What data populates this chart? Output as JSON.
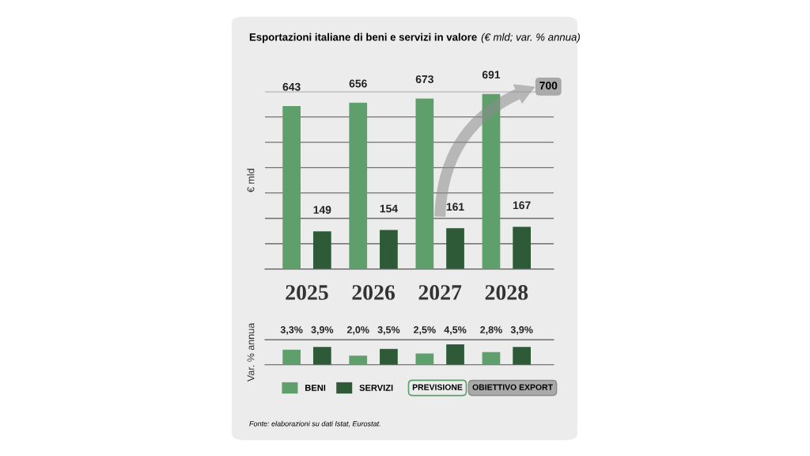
{
  "chart_data": [
    {
      "type": "bar",
      "title": "Esportazioni italiane di beni e servizi in valore",
      "subtitle": "(€ mld; var. % annua)",
      "ylabel": "€ mld",
      "categories": [
        "2025",
        "2026",
        "2027",
        "2028"
      ],
      "series": [
        {
          "name": "BENI",
          "color": "#5e9f6c",
          "values": [
            643,
            656,
            673,
            691
          ]
        },
        {
          "name": "SERVIZI",
          "color": "#2e5a38",
          "values": [
            149,
            154,
            161,
            167
          ]
        }
      ],
      "data_labels": true,
      "ylim": [
        0,
        700
      ],
      "legend": "bottom",
      "yticks": [
        {
          "value": 100,
          "label": null
        },
        {
          "value": 200,
          "label": null
        },
        {
          "value": 300,
          "label": null
        },
        {
          "value": 400,
          "label": null
        },
        {
          "value": 500,
          "label": null
        },
        {
          "value": 600,
          "label": null
        },
        {
          "value": 700,
          "label": null
        }
      ],
      "grid": "y",
      "tick_labels": "x",
      "annotations": [
        "700"
      ]
    },
    {
      "type": "bar",
      "ylabel": "Var. % annua",
      "categories": [
        "2025",
        "2026",
        "2027",
        "2028"
      ],
      "series": [
        {
          "color": "#5e9f6c",
          "values": [
            3.3,
            2.0,
            2.5,
            2.8
          ],
          "value_labels": [
            "3,3%",
            "2,0%",
            "2,5%",
            "2,8%"
          ]
        },
        {
          "color": "#2e5a38",
          "values": [
            3.9,
            3.5,
            4.5,
            3.9
          ],
          "value_labels": [
            "3,9%",
            "3,5%",
            "4,5%",
            "3,9%"
          ]
        }
      ],
      "ylim": [
        0,
        5.5
      ],
      "tick_labels": false,
      "annotations": [
        "PREVISIONE",
        "OBIETTIVO EXPORT",
        "Fonte: elaborazioni su dati Istat, Eurostat."
      ]
    }
  ]
}
